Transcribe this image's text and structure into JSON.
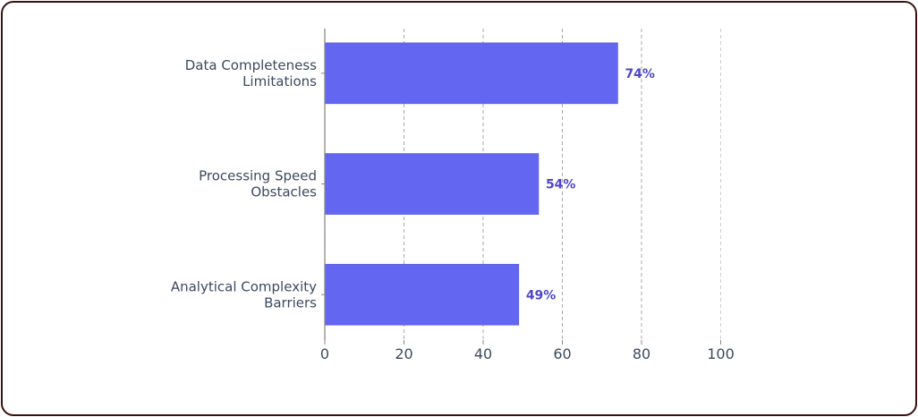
{
  "chart_data": {
    "type": "bar",
    "orientation": "horizontal",
    "categories": [
      [
        "Data Completeness",
        "Limitations"
      ],
      [
        "Processing Speed",
        "Obstacles"
      ],
      [
        "Analytical Complexity",
        "Barriers"
      ]
    ],
    "values": [
      74,
      54,
      49
    ],
    "data_labels": [
      "74%",
      "54%",
      "49%"
    ],
    "xticks": [
      0,
      20,
      40,
      60,
      80,
      100
    ],
    "xlim": [
      0,
      100
    ],
    "grid": "vertical dashed",
    "bar_color": "#6366f1",
    "label_color": "#4f46c8",
    "title": "",
    "xlabel": "",
    "ylabel": ""
  }
}
